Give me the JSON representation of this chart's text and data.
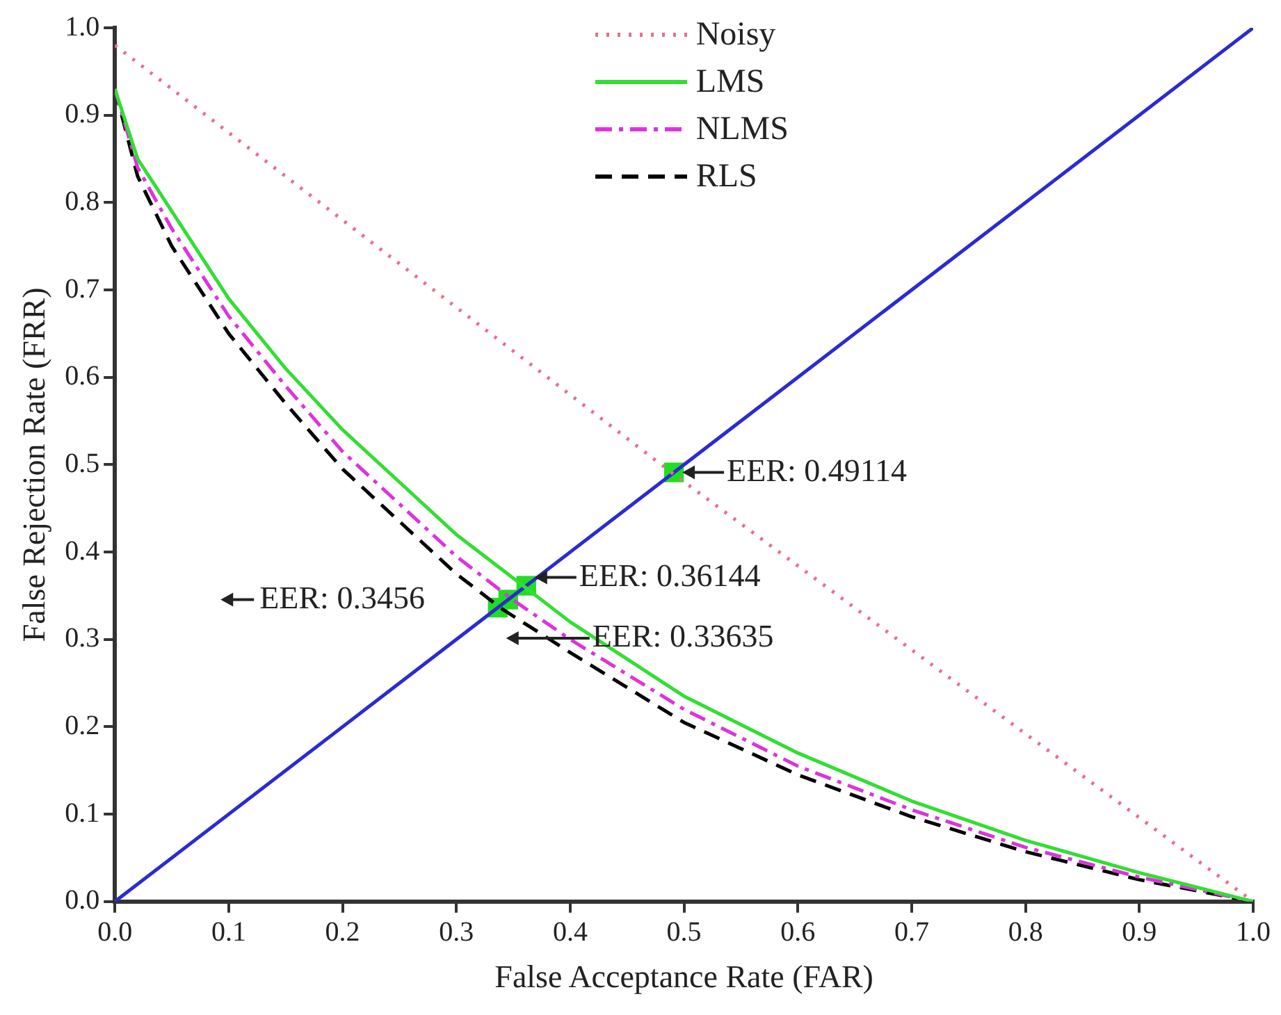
{
  "chart_data": {
    "type": "line",
    "xlabel": "False Acceptance Rate (FAR)",
    "ylabel": "False Rejection Rate (FRR)",
    "xlim": [
      0,
      1
    ],
    "ylim": [
      0,
      1
    ],
    "xticks": [
      {
        "value": 0,
        "label": "0.0"
      },
      {
        "value": 0.1,
        "label": "0.1"
      },
      {
        "value": 0.2,
        "label": "0.2"
      },
      {
        "value": 0.3,
        "label": "0.3"
      },
      {
        "value": 0.4,
        "label": "0.4"
      },
      {
        "value": 0.5,
        "label": "0.5"
      },
      {
        "value": 0.6,
        "label": "0.6"
      },
      {
        "value": 0.7,
        "label": "0.7"
      },
      {
        "value": 0.8,
        "label": "0.8"
      },
      {
        "value": 0.9,
        "label": "0.9"
      },
      {
        "value": 1,
        "label": "1.0"
      }
    ],
    "yticks": [
      {
        "value": 0,
        "label": "0.0"
      },
      {
        "value": 0.1,
        "label": "0.1"
      },
      {
        "value": 0.2,
        "label": "0.2"
      },
      {
        "value": 0.3,
        "label": "0.3"
      },
      {
        "value": 0.4,
        "label": "0.4"
      },
      {
        "value": 0.5,
        "label": "0.5"
      },
      {
        "value": 0.6,
        "label": "0.6"
      },
      {
        "value": 0.7,
        "label": "0.7"
      },
      {
        "value": 0.8,
        "label": "0.8"
      },
      {
        "value": 0.9,
        "label": "0.9"
      },
      {
        "value": 1,
        "label": "1.0"
      }
    ],
    "grid": false,
    "legend": "top",
    "marker": "none",
    "series": [
      {
        "name": "Noisy",
        "color": "#e8708a",
        "line_style": "dotted",
        "x": [
          0,
          0.25,
          0.49,
          0.75,
          1
        ],
        "values": [
          0.98,
          0.73,
          0.49,
          0.24,
          0
        ]
      },
      {
        "name": "LMS",
        "color": "#33dd33",
        "line_style": "solid",
        "x": [
          0,
          0.02,
          0.05,
          0.1,
          0.15,
          0.2,
          0.25,
          0.3,
          0.36,
          0.4,
          0.5,
          0.6,
          0.7,
          0.8,
          0.9,
          1
        ],
        "values": [
          0.93,
          0.85,
          0.79,
          0.69,
          0.61,
          0.54,
          0.48,
          0.42,
          0.36,
          0.32,
          0.235,
          0.17,
          0.115,
          0.07,
          0.033,
          0
        ]
      },
      {
        "name": "NLMS",
        "color": "#dd33dd",
        "line_style": "dashdot",
        "x": [
          0,
          0.02,
          0.05,
          0.1,
          0.15,
          0.2,
          0.25,
          0.3,
          0.35,
          0.4,
          0.5,
          0.6,
          0.7,
          0.8,
          0.9,
          1
        ],
        "values": [
          0.93,
          0.84,
          0.77,
          0.67,
          0.59,
          0.515,
          0.455,
          0.395,
          0.345,
          0.3,
          0.22,
          0.155,
          0.105,
          0.062,
          0.028,
          0
        ]
      },
      {
        "name": "RLS",
        "color": "#000000",
        "line_style": "dashed",
        "x": [
          0,
          0.02,
          0.05,
          0.1,
          0.15,
          0.2,
          0.25,
          0.3,
          0.34,
          0.4,
          0.5,
          0.6,
          0.7,
          0.8,
          0.9,
          1
        ],
        "values": [
          0.93,
          0.83,
          0.75,
          0.65,
          0.57,
          0.495,
          0.435,
          0.375,
          0.335,
          0.285,
          0.205,
          0.145,
          0.097,
          0.057,
          0.025,
          0
        ]
      },
      {
        "color": "#2b2bd0",
        "line_style": "solid",
        "x": [
          0,
          1
        ],
        "values": [
          0,
          1
        ]
      },
      {
        "type": "scatter",
        "marker": "square",
        "color": "#22dd22",
        "x": [
          0.49114,
          0.36144,
          0.3456,
          0.33635
        ],
        "values": [
          0.49114,
          0.36144,
          0.3456,
          0.33635
        ]
      }
    ],
    "annotations": [
      {
        "text": "EER: 0.49114",
        "x": 0.49114,
        "y": 0.49114
      },
      {
        "text": "EER: 0.36144",
        "x": 0.36144,
        "y": 0.36144
      },
      {
        "text": "EER: 0.3456",
        "x": 0.3456,
        "y": 0.3456
      },
      {
        "text": "EER: 0.33635",
        "x": 0.33635,
        "y": 0.33635
      }
    ]
  }
}
